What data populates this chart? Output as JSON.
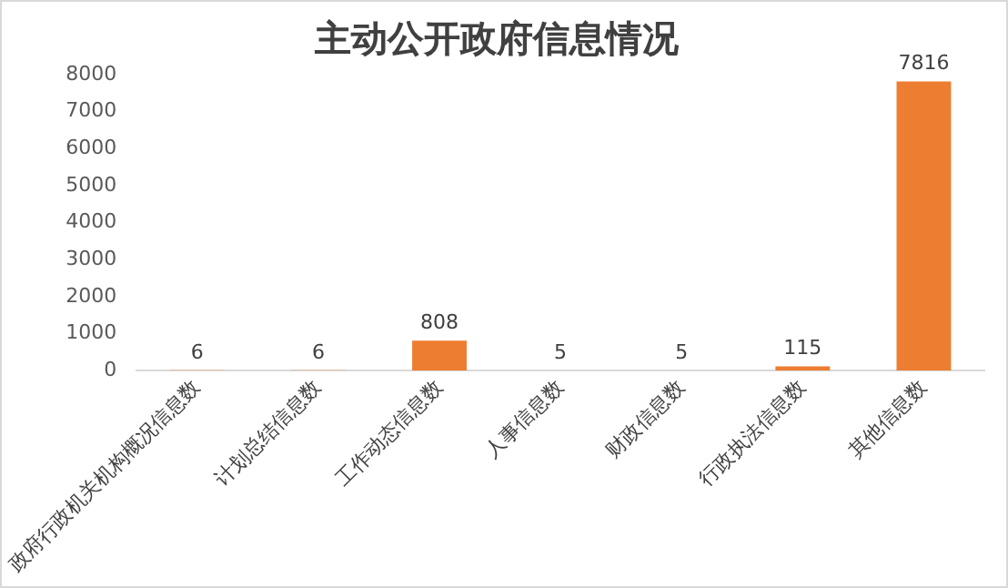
{
  "chart_data": {
    "type": "bar",
    "title": "主动公开政府信息情况",
    "categories": [
      "政府行政机关机构概况信息数",
      "计划总结信息数",
      "工作动态信息数",
      "人事信息数",
      "财政信息数",
      "行政执法信息数",
      "其他信息数"
    ],
    "values": [
      6,
      6,
      808,
      5,
      5,
      115,
      7816
    ],
    "color": "#ed7d31",
    "ylim": [
      0,
      8000
    ],
    "yticks": [
      0,
      1000,
      2000,
      3000,
      4000,
      5000,
      6000,
      7000,
      8000
    ],
    "grid": false,
    "legend": false,
    "data_labels": true
  }
}
